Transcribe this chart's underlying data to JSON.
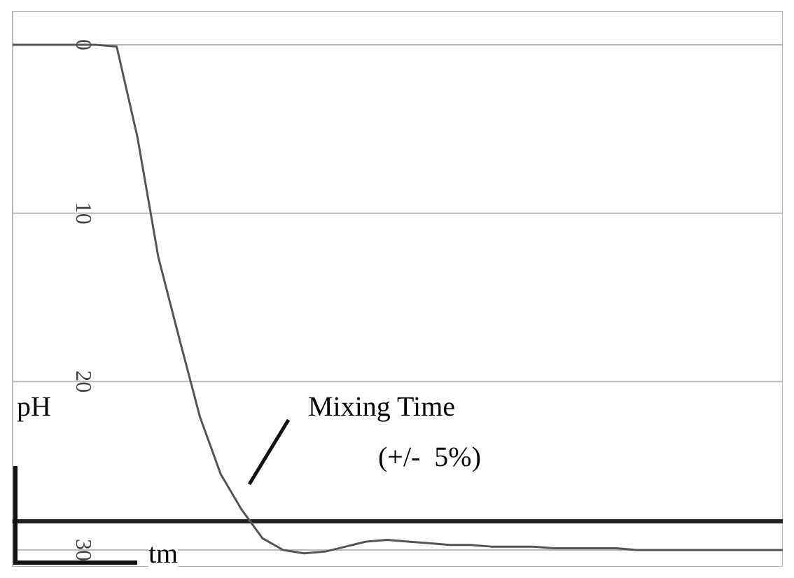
{
  "chart_data": {
    "type": "line",
    "xlabel": "tm",
    "ylabel": "pH",
    "annotations": [
      "Mixing Time",
      "(+/-  5%)"
    ],
    "categories": [
      null,
      null,
      null,
      null,
      null,
      null,
      null,
      null,
      null,
      null,
      null,
      null,
      null,
      null,
      null,
      null,
      null,
      null,
      null,
      null,
      null,
      null,
      null,
      null,
      null,
      null,
      null,
      null,
      null,
      null,
      null,
      null,
      null,
      null,
      null,
      null,
      null,
      null
    ],
    "series": [
      {
        "color": "#555555",
        "values": [
          0,
          0,
          0,
          0,
          0,
          0.1,
          5.5,
          12.6,
          17.4,
          22.1,
          25.5,
          27.6,
          29.3,
          30,
          30.2,
          30.1,
          29.8,
          29.5,
          29.4,
          29.5,
          29.6,
          29.7,
          29.7,
          29.8,
          29.8,
          29.8,
          29.9,
          29.9,
          29.9,
          29.9,
          30,
          30,
          30,
          30,
          30,
          30,
          30,
          30
        ]
      }
    ],
    "ylim": [
      31,
      -2
    ],
    "yticks": [
      0,
      10,
      20,
      30
    ],
    "ref_lines": [
      {
        "axis": "y",
        "value": 28.3,
        "color": "#222222"
      }
    ],
    "grid": true,
    "marker": "none",
    "line_style": "solid"
  }
}
